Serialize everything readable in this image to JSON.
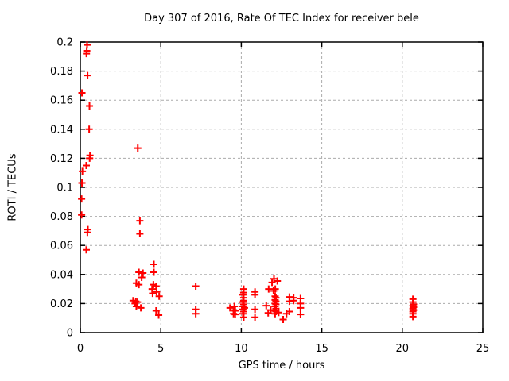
{
  "window": {
    "background": "#ffffff"
  },
  "chart_data": {
    "type": "scatter",
    "title": "Day 307 of 2016, Rate Of TEC Index for receiver bele",
    "xlabel": "GPS time / hours",
    "ylabel": "ROTI / TECUs",
    "xlim": [
      0,
      25
    ],
    "ylim": [
      0,
      0.2
    ],
    "xticks": [
      0,
      5,
      10,
      15,
      20,
      25
    ],
    "xtick_labels": [
      "0",
      "5",
      "10",
      "15",
      "20",
      "25"
    ],
    "yticks": [
      0,
      0.02,
      0.04,
      0.06,
      0.08,
      0.1,
      0.12,
      0.14,
      0.16,
      0.18,
      0.2
    ],
    "ytick_labels": [
      "0",
      "0.02",
      "0.04",
      "0.06",
      "0.08",
      "0.1",
      "0.12",
      "0.14",
      "0.16",
      "0.18",
      "0.2"
    ],
    "grid": true,
    "legend_position": "none",
    "marker": {
      "shape": "plus",
      "color": "#ff0000",
      "size": 9,
      "stroke_width": 2
    },
    "grid_color": "#ababab",
    "border_color": "#000000",
    "series": [
      {
        "name": "ROTI",
        "points": [
          [
            0.42,
            0.198
          ],
          [
            0.4,
            0.194
          ],
          [
            0.38,
            0.192
          ],
          [
            0.45,
            0.177
          ],
          [
            0.1,
            0.165
          ],
          [
            0.57,
            0.156
          ],
          [
            0.55,
            0.14
          ],
          [
            0.6,
            0.122
          ],
          [
            0.58,
            0.12
          ],
          [
            0.37,
            0.115
          ],
          [
            0.13,
            0.111
          ],
          [
            0.1,
            0.103
          ],
          [
            0.08,
            0.092
          ],
          [
            0.08,
            0.081
          ],
          [
            0.47,
            0.071
          ],
          [
            0.44,
            0.069
          ],
          [
            0.37,
            0.057
          ],
          [
            3.57,
            0.127
          ],
          [
            3.7,
            0.077
          ],
          [
            3.7,
            0.068
          ],
          [
            4.57,
            0.047
          ],
          [
            3.64,
            0.0415
          ],
          [
            3.89,
            0.041
          ],
          [
            4.57,
            0.0415
          ],
          [
            3.81,
            0.038
          ],
          [
            3.48,
            0.034
          ],
          [
            3.64,
            0.033
          ],
          [
            4.54,
            0.033
          ],
          [
            4.71,
            0.032
          ],
          [
            4.46,
            0.03
          ],
          [
            4.74,
            0.028
          ],
          [
            4.49,
            0.027
          ],
          [
            4.9,
            0.025
          ],
          [
            3.28,
            0.022
          ],
          [
            3.45,
            0.0215
          ],
          [
            3.55,
            0.021
          ],
          [
            3.4,
            0.02
          ],
          [
            3.48,
            0.018
          ],
          [
            3.76,
            0.017
          ],
          [
            4.71,
            0.015
          ],
          [
            4.87,
            0.012
          ],
          [
            7.17,
            0.032
          ],
          [
            7.17,
            0.016
          ],
          [
            7.17,
            0.013
          ],
          [
            9.3,
            0.017
          ],
          [
            9.57,
            0.018
          ],
          [
            9.52,
            0.0155
          ],
          [
            9.62,
            0.015
          ],
          [
            9.52,
            0.013
          ],
          [
            9.62,
            0.0125
          ],
          [
            10.15,
            0.03
          ],
          [
            10.15,
            0.0275
          ],
          [
            10.1,
            0.026
          ],
          [
            10.15,
            0.024
          ],
          [
            10.15,
            0.022
          ],
          [
            10.1,
            0.021
          ],
          [
            10.15,
            0.0195
          ],
          [
            10.1,
            0.018
          ],
          [
            10.2,
            0.017
          ],
          [
            10.1,
            0.016
          ],
          [
            10.15,
            0.0145
          ],
          [
            10.1,
            0.013
          ],
          [
            10.15,
            0.0105
          ],
          [
            10.85,
            0.028
          ],
          [
            10.85,
            0.026
          ],
          [
            10.85,
            0.016
          ],
          [
            10.85,
            0.0105
          ],
          [
            12.03,
            0.037
          ],
          [
            12.24,
            0.0355
          ],
          [
            11.91,
            0.0345
          ],
          [
            11.7,
            0.03
          ],
          [
            12.11,
            0.03
          ],
          [
            12.0,
            0.0287
          ],
          [
            12.1,
            0.025
          ],
          [
            12.15,
            0.024
          ],
          [
            12.1,
            0.0225
          ],
          [
            12.15,
            0.0215
          ],
          [
            12.1,
            0.02
          ],
          [
            12.15,
            0.0195
          ],
          [
            12.1,
            0.018
          ],
          [
            12.15,
            0.0165
          ],
          [
            12.1,
            0.015
          ],
          [
            12.15,
            0.0145
          ],
          [
            12.1,
            0.013
          ],
          [
            11.55,
            0.0185
          ],
          [
            11.83,
            0.0155
          ],
          [
            11.67,
            0.0135
          ],
          [
            12.32,
            0.0138
          ],
          [
            12.6,
            0.009
          ],
          [
            12.99,
            0.0245
          ],
          [
            13.25,
            0.024
          ],
          [
            13.25,
            0.022
          ],
          [
            12.99,
            0.0215
          ],
          [
            13.68,
            0.0235
          ],
          [
            13.68,
            0.02
          ],
          [
            13.68,
            0.017
          ],
          [
            12.99,
            0.0145
          ],
          [
            12.81,
            0.013
          ],
          [
            13.68,
            0.0125
          ],
          [
            20.66,
            0.023
          ],
          [
            20.66,
            0.021
          ],
          [
            20.7,
            0.0195
          ],
          [
            20.66,
            0.0185
          ],
          [
            20.7,
            0.0175
          ],
          [
            20.66,
            0.0165
          ],
          [
            20.7,
            0.0155
          ],
          [
            20.66,
            0.0145
          ],
          [
            20.66,
            0.013
          ],
          [
            20.66,
            0.011
          ]
        ]
      }
    ]
  }
}
